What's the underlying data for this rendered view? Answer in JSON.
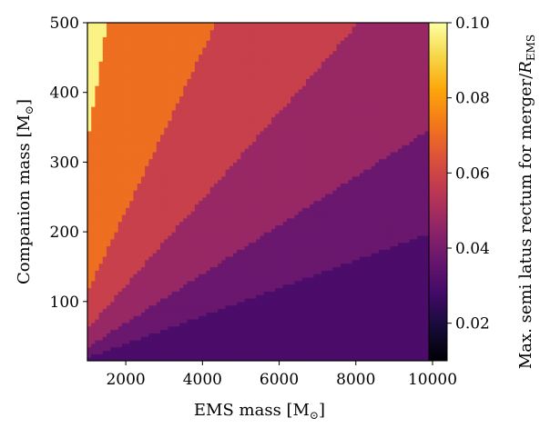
{
  "chart_data": {
    "type": "heatmap",
    "title": "",
    "xlabel_main": "EMS mass [M",
    "xlabel_sub": "⊙",
    "xlabel_close": "]",
    "ylabel_main": "Companion mass [M",
    "ylabel_sub": "⊙",
    "ylabel_close": "]",
    "colorbar_label_main": "Max. semi latus rectum for merger/",
    "colorbar_label_var": "R",
    "colorbar_label_sub": "EMS",
    "colormap": "inferno",
    "xlim": [
      1000,
      10000
    ],
    "ylim": [
      15,
      500
    ],
    "clim": [
      0.01,
      0.1
    ],
    "x_ticks": [
      2000,
      4000,
      6000,
      8000,
      10000
    ],
    "x_tick_labels": [
      "2000",
      "4000",
      "6000",
      "8000",
      "10000"
    ],
    "y_ticks": [
      100,
      200,
      300,
      400,
      500
    ],
    "y_tick_labels": [
      "100",
      "200",
      "300",
      "400",
      "500"
    ],
    "colorbar_ticks": [
      0.02,
      0.04,
      0.06,
      0.08,
      0.1
    ],
    "colorbar_tick_labels": [
      "0.02",
      "0.04",
      "0.06",
      "0.08",
      "0.10"
    ],
    "bands": [
      {
        "value": 0.097,
        "ratio_min": 0.33
      },
      {
        "value": 0.071,
        "ratio_min": 0.115
      },
      {
        "value": 0.058,
        "ratio_min": 0.062
      },
      {
        "value": 0.047,
        "ratio_min": 0.035
      },
      {
        "value": 0.037,
        "ratio_min": 0.02
      },
      {
        "value": 0.03,
        "ratio_min": 0.0
      }
    ]
  }
}
